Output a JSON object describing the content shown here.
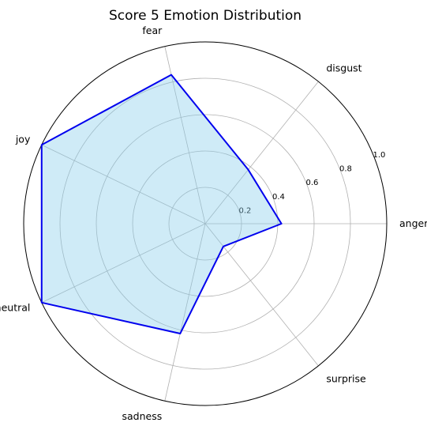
{
  "chart_data": {
    "type": "radar",
    "title": "Score 5 Emotion Distribution",
    "categories": [
      "anger",
      "disgust",
      "fear",
      "joy",
      "neutral",
      "sadness",
      "surprise"
    ],
    "values": [
      0.42,
      0.38,
      0.84,
      1.0,
      1.0,
      0.62,
      0.16
    ],
    "rlim": [
      0,
      1.0
    ],
    "r_ticks": [
      0.2,
      0.4,
      0.6,
      0.8,
      1.0
    ],
    "r_tick_labels": [
      "0.2",
      "0.4",
      "0.6",
      "0.8",
      "1.0"
    ],
    "line_color": "#0000ee",
    "fill_color": "#87ceeb",
    "grid": true
  }
}
